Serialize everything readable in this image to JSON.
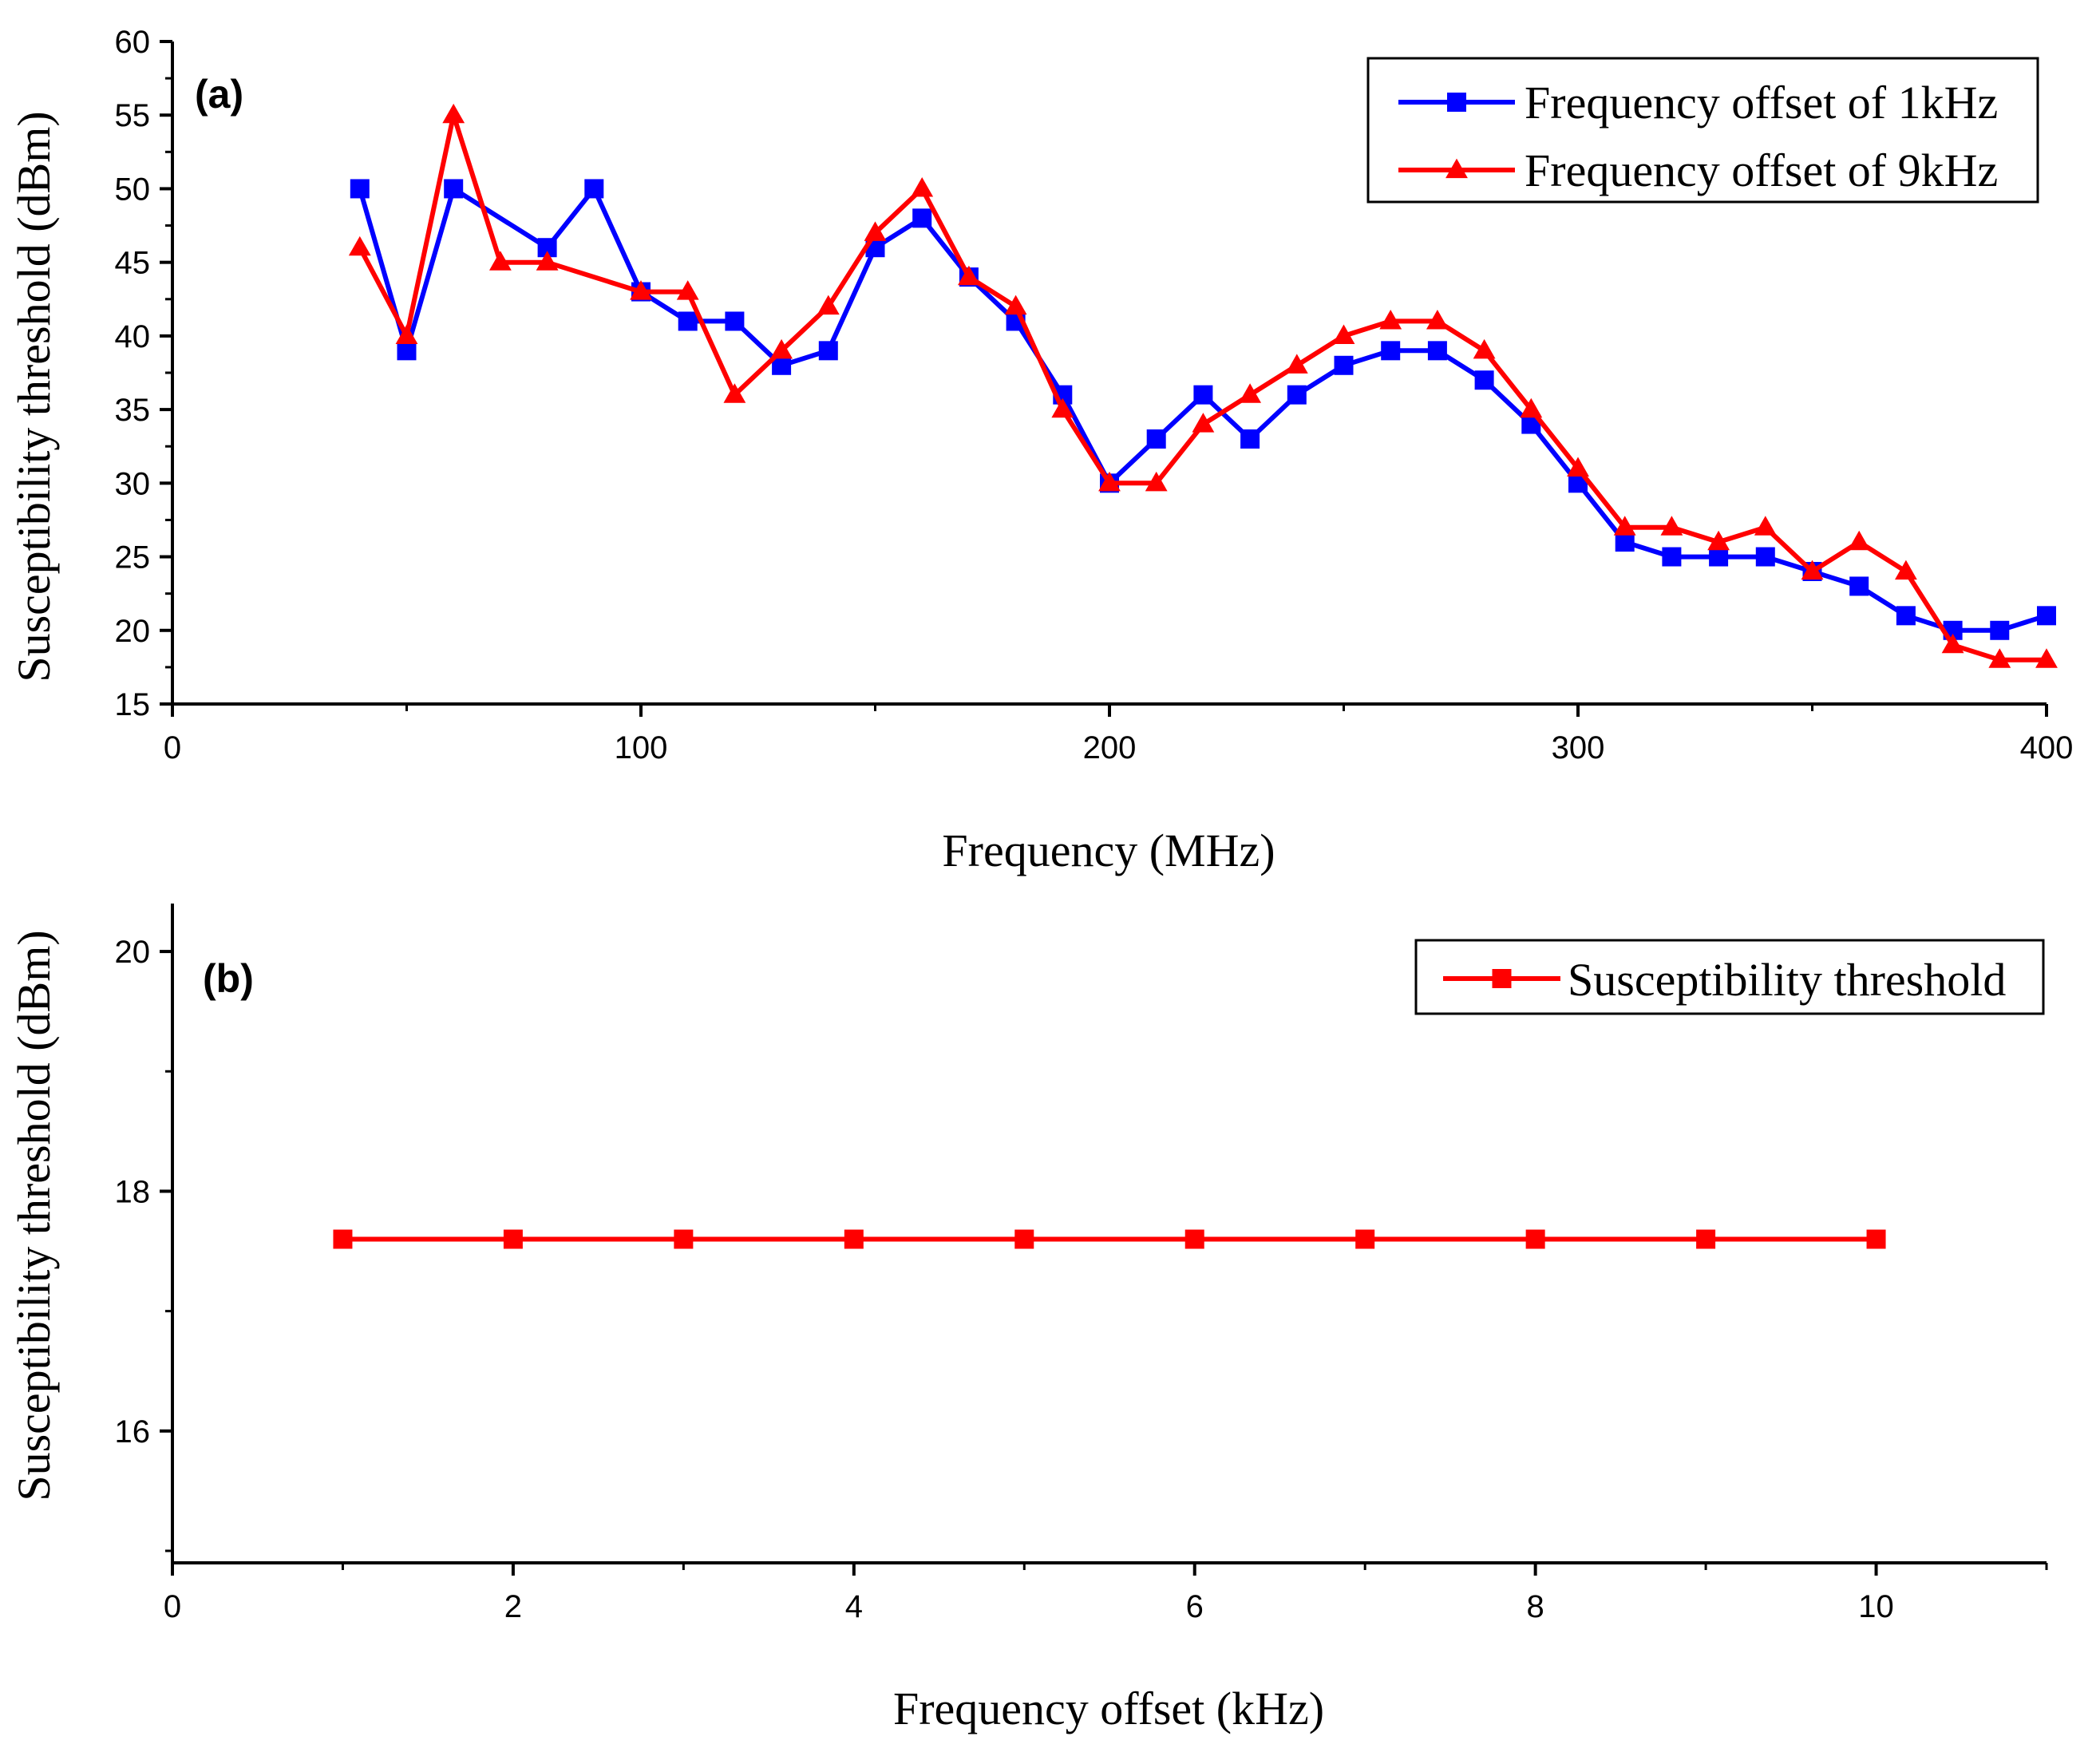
{
  "chart_data": [
    {
      "type": "line",
      "panel_label": "(a)",
      "xlabel": "Frequency (MHz)",
      "ylabel": "Susceptibility threshold (dBm)",
      "xlim": [
        0,
        400
      ],
      "ylim": [
        15,
        60
      ],
      "xticks": [
        0,
        100,
        200,
        300,
        400
      ],
      "yticks": [
        15,
        20,
        25,
        30,
        35,
        40,
        45,
        50,
        55,
        60
      ],
      "grid": false,
      "legend_position": "top-right",
      "series": [
        {
          "name": "Frequency offset of 1kHz",
          "color": "#0000ff",
          "marker": "square",
          "x": [
            40,
            50,
            60,
            80,
            90,
            100,
            110,
            120,
            130,
            140,
            150,
            160,
            170,
            180,
            190,
            200,
            210,
            220,
            230,
            240,
            250,
            260,
            270,
            280,
            290,
            300,
            310,
            320,
            330,
            340,
            350,
            360,
            370,
            380,
            390,
            400
          ],
          "y": [
            50,
            39,
            50,
            46,
            50,
            43,
            41,
            41,
            38,
            39,
            46,
            48,
            44,
            41,
            36,
            30,
            33,
            36,
            33,
            36,
            38,
            39,
            39,
            37,
            34,
            30,
            26,
            25,
            25,
            25,
            24,
            23,
            21,
            20,
            20,
            21
          ]
        },
        {
          "name": "Frequency offset of 9kHz",
          "color": "#ff0000",
          "marker": "triangle",
          "x": [
            40,
            50,
            60,
            70,
            80,
            100,
            110,
            120,
            130,
            140,
            150,
            160,
            170,
            180,
            190,
            200,
            210,
            220,
            230,
            240,
            250,
            260,
            270,
            280,
            290,
            300,
            310,
            320,
            330,
            340,
            350,
            360,
            370,
            380,
            390,
            400
          ],
          "y": [
            46,
            40,
            55,
            45,
            45,
            43,
            43,
            36,
            39,
            42,
            47,
            50,
            44,
            42,
            35,
            30,
            30,
            34,
            36,
            38,
            40,
            41,
            41,
            39,
            35,
            31,
            27,
            27,
            26,
            27,
            24,
            26,
            24,
            19,
            18,
            18
          ]
        }
      ]
    },
    {
      "type": "line",
      "panel_label": "(b)",
      "xlabel": "Frequency offset (kHz)",
      "ylabel": "Susceptibility threshold (dBm)",
      "xlim": [
        0,
        11
      ],
      "ylim": [
        14.9,
        20.4
      ],
      "xticks": [
        0,
        2,
        4,
        6,
        8,
        10
      ],
      "yticks": [
        16,
        18,
        20
      ],
      "grid": false,
      "legend_position": "top-right",
      "series": [
        {
          "name": "Susceptibility threshold",
          "color": "#ff0000",
          "marker": "square",
          "x": [
            1,
            2,
            3,
            4,
            5,
            6,
            7,
            8,
            9,
            10
          ],
          "y": [
            17.6,
            17.6,
            17.6,
            17.6,
            17.6,
            17.6,
            17.6,
            17.6,
            17.6,
            17.6
          ]
        }
      ]
    }
  ]
}
